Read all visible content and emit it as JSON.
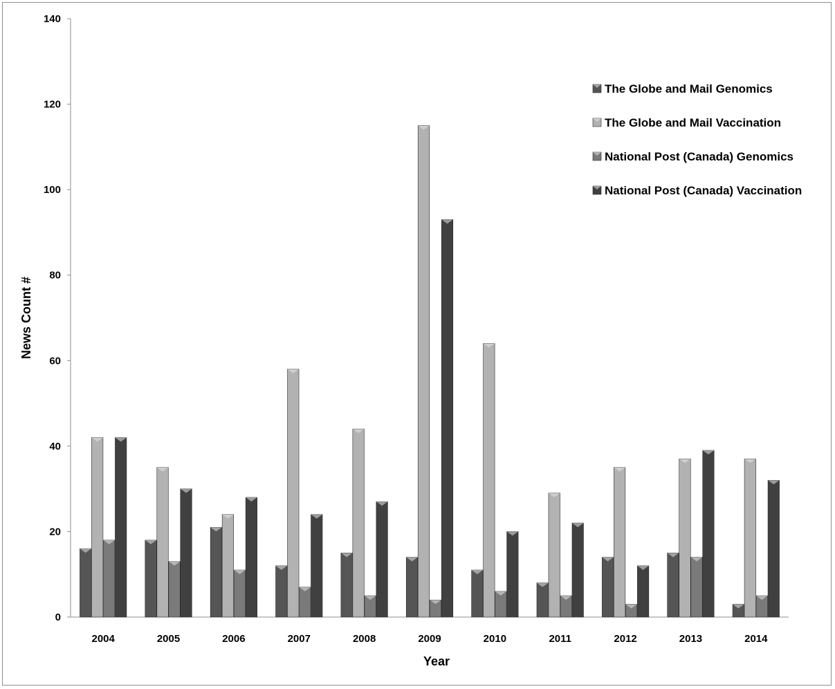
{
  "chart_data": {
    "type": "bar",
    "xlabel": "Year",
    "ylabel": "News Count #",
    "ylim": [
      0,
      140
    ],
    "yticks": [
      0,
      20,
      40,
      60,
      80,
      100,
      120,
      140
    ],
    "grid": false,
    "legend_position": "top-right",
    "categories": [
      "2004",
      "2005",
      "2006",
      "2007",
      "2008",
      "2009",
      "2010",
      "2011",
      "2012",
      "2013",
      "2014"
    ],
    "series": [
      {
        "name": "The Globe and Mail Genomics",
        "color": "#555555",
        "values": [
          16,
          18,
          21,
          12,
          15,
          14,
          11,
          8,
          14,
          15,
          3
        ]
      },
      {
        "name": "The Globe and Mail Vaccination",
        "color": "#b2b2b2",
        "values": [
          42,
          35,
          24,
          58,
          44,
          115,
          64,
          29,
          35,
          37,
          37
        ]
      },
      {
        "name": "National Post (Canada) Genomics",
        "color": "#7a7a7a",
        "values": [
          18,
          13,
          11,
          7,
          5,
          4,
          6,
          5,
          3,
          14,
          5
        ]
      },
      {
        "name": "National Post (Canada) Vaccination",
        "color": "#404040",
        "values": [
          42,
          30,
          28,
          24,
          27,
          93,
          20,
          22,
          12,
          39,
          32
        ]
      }
    ]
  }
}
